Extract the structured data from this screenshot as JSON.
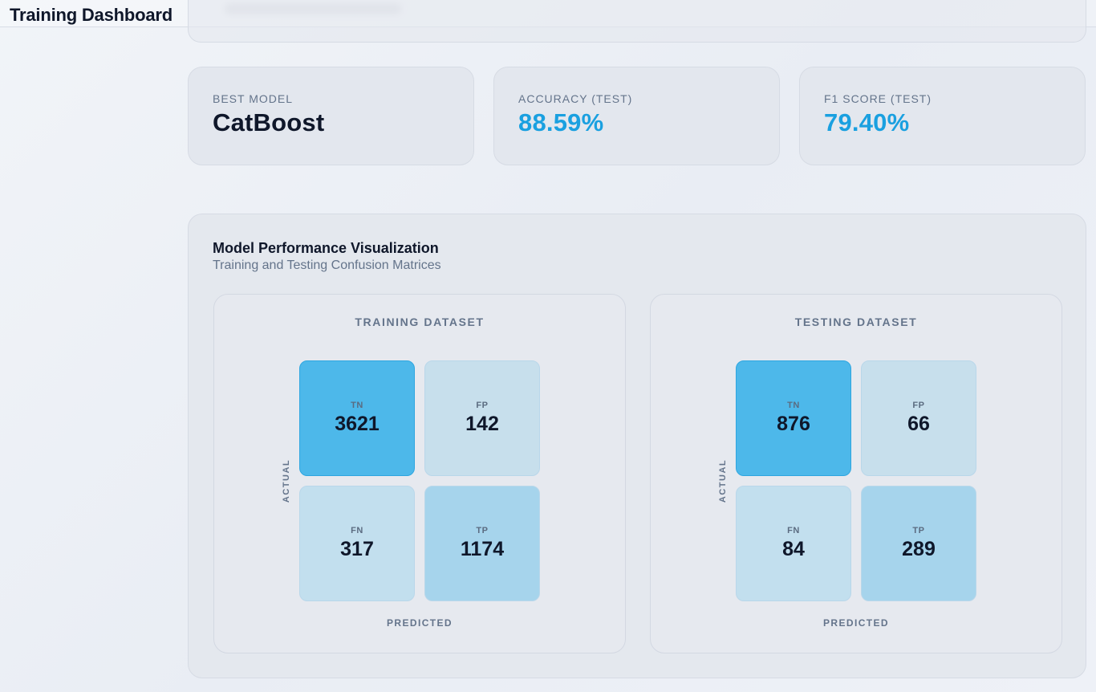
{
  "app": {
    "title": "Training Dashboard"
  },
  "stats": [
    {
      "label": "BEST MODEL",
      "value": "CatBoost"
    },
    {
      "label": "ACCURACY (TEST)",
      "value": "88.59%"
    },
    {
      "label": "F1 SCORE (TEST)",
      "value": "79.40%"
    }
  ],
  "visualization": {
    "title": "Model Performance Visualization",
    "subtitle": "Training and Testing Confusion Matrices",
    "axis_actual": "ACTUAL",
    "axis_predicted": "PREDICTED",
    "matrices": [
      {
        "title": "TRAINING DATASET",
        "tn": {
          "label": "TN",
          "value": "3621"
        },
        "fp": {
          "label": "FP",
          "value": "142"
        },
        "fn": {
          "label": "FN",
          "value": "317"
        },
        "tp": {
          "label": "TP",
          "value": "1174"
        }
      },
      {
        "title": "TESTING DATASET",
        "tn": {
          "label": "TN",
          "value": "876"
        },
        "fp": {
          "label": "FP",
          "value": "66"
        },
        "fn": {
          "label": "FN",
          "value": "84"
        },
        "tp": {
          "label": "TP",
          "value": "289"
        }
      }
    ]
  },
  "colors": {
    "accent": "#1aa0e0",
    "tn_cell": "#4db8ea",
    "tp_cell": "#a6d4ec",
    "off_cell": "#c7dfec"
  }
}
